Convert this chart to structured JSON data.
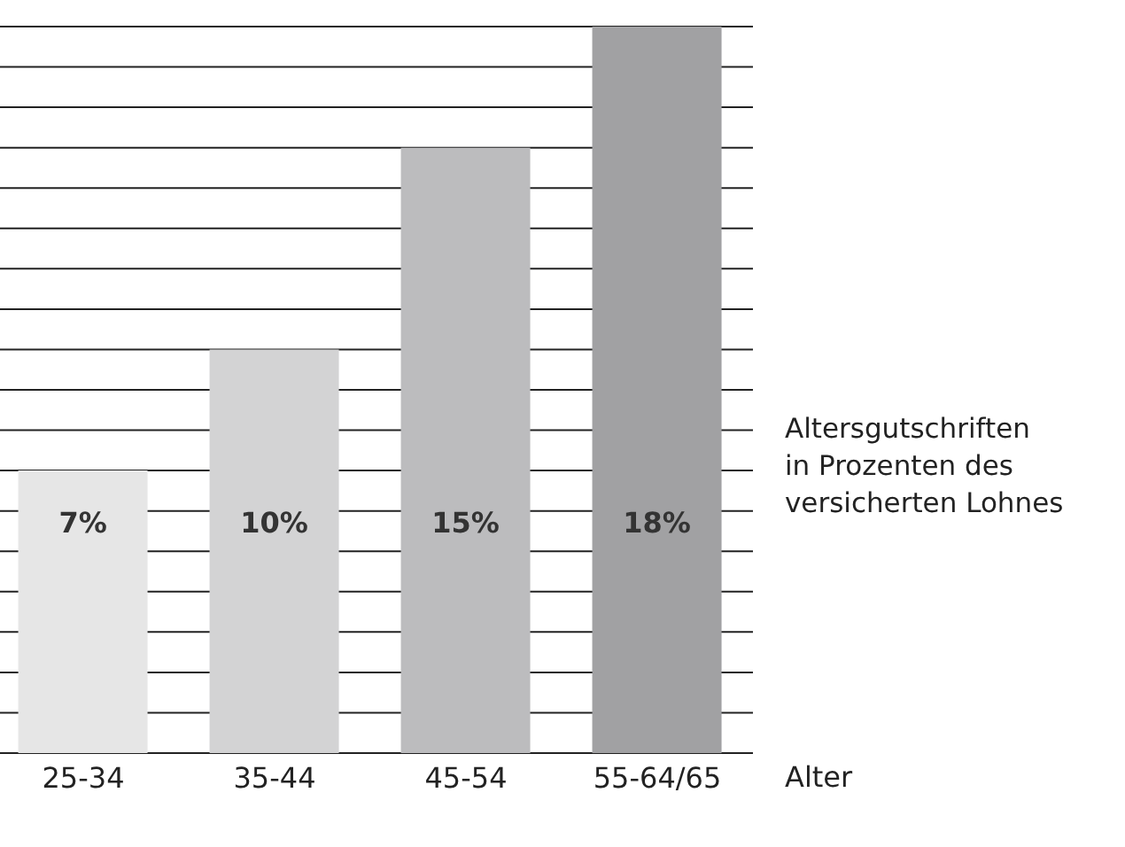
{
  "chart_data": {
    "type": "bar",
    "xlabel": "Alter",
    "categories": [
      "25-34",
      "35-44",
      "45-54",
      "55-64/65"
    ],
    "values": [
      7,
      10,
      15,
      18
    ],
    "colors": [
      "#e6e6e6",
      "#d3d3d4",
      "#bcbcbe",
      "#a1a1a3"
    ],
    "value_labels": [
      "7%",
      "10%",
      "15%",
      "18%"
    ],
    "ylim": [
      0,
      18
    ],
    "yticks": [
      {
        "value": 0,
        "label": null
      },
      {
        "value": 1,
        "label": null
      },
      {
        "value": 2,
        "label": null
      },
      {
        "value": 3,
        "label": null
      },
      {
        "value": 4,
        "label": null
      },
      {
        "value": 5,
        "label": null
      },
      {
        "value": 6,
        "label": null
      },
      {
        "value": 7,
        "label": null
      },
      {
        "value": 8,
        "label": null
      },
      {
        "value": 9,
        "label": null
      },
      {
        "value": 10,
        "label": null
      },
      {
        "value": 11,
        "label": null
      },
      {
        "value": 12,
        "label": null
      },
      {
        "value": 13,
        "label": null
      },
      {
        "value": 14,
        "label": null
      },
      {
        "value": 15,
        "label": null
      },
      {
        "value": 16,
        "label": null
      },
      {
        "value": 17,
        "label": null
      },
      {
        "value": 18,
        "label": null
      }
    ],
    "tick_labels": "x",
    "grid": "y",
    "annotations": [
      "Altersgutschriften\nin Prozenten des\nversicherten Lohnes"
    ]
  }
}
